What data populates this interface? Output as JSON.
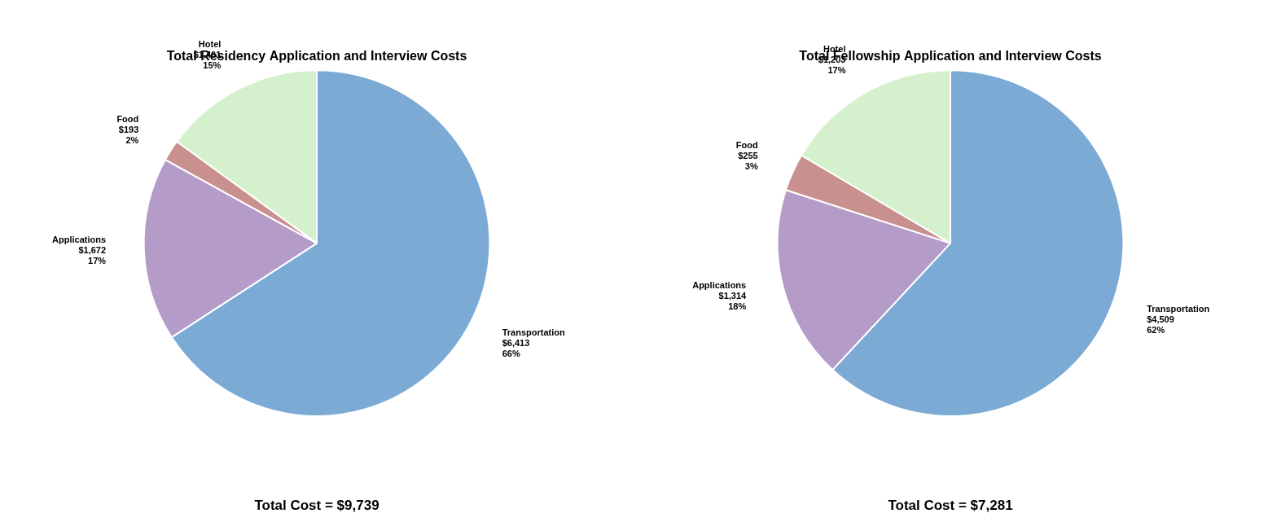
{
  "chart_data": [
    {
      "type": "pie",
      "title": "Total Residency Application and Interview Costs",
      "annotation": "Total Cost = $9,739",
      "categories": [
        "Transportation",
        "Applications",
        "Food",
        "Hotel"
      ],
      "values": [
        6413,
        1672,
        193,
        1461
      ],
      "value_labels": [
        "$6,413",
        "$1,672",
        "$193",
        "$1,461"
      ],
      "percentages": [
        66,
        17,
        2,
        15
      ],
      "percentage_labels": [
        "66%",
        "17%",
        "2%",
        "15%"
      ],
      "colors": [
        "#7BAAD4",
        "#B59BC8",
        "#C99090",
        "#D4F0CC"
      ],
      "data_labels": true,
      "legend": false
    },
    {
      "type": "pie",
      "title": "Total Fellowship Application and Interview Costs",
      "annotation": "Total Cost = $7,281",
      "categories": [
        "Transportation",
        "Applications",
        "Food",
        "Hotel"
      ],
      "values": [
        4509,
        1314,
        255,
        1203
      ],
      "value_labels": [
        "$4,509",
        "$1,314",
        "$255",
        "$1,203"
      ],
      "percentages": [
        62,
        18,
        3,
        17
      ],
      "percentage_labels": [
        "62%",
        "18%",
        "3%",
        "17%"
      ],
      "colors": [
        "#7BAAD4",
        "#B59BC8",
        "#C99090",
        "#D4F0CC"
      ],
      "data_labels": true,
      "legend": false
    }
  ]
}
